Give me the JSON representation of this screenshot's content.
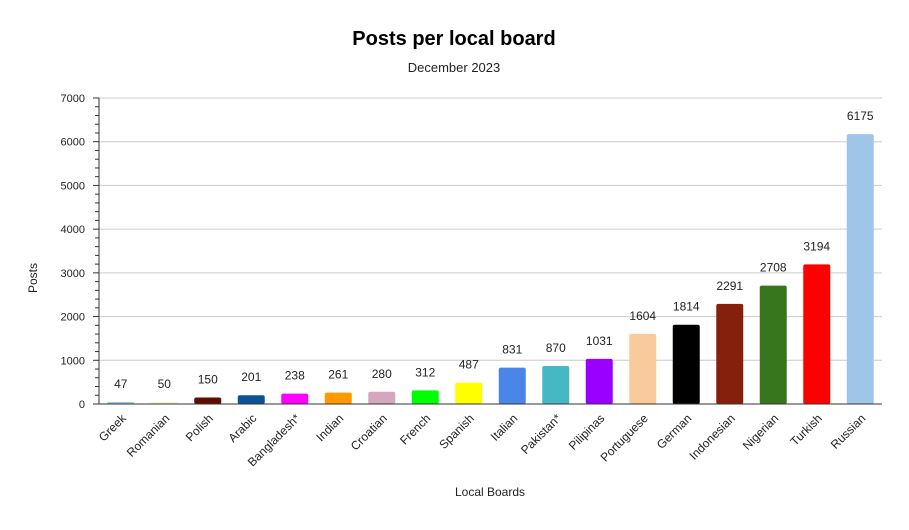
{
  "chart_data": {
    "type": "bar",
    "title": "Posts per local board",
    "subtitle": "December 2023",
    "xlabel": "Local Boards",
    "ylabel": "Posts",
    "ylim": [
      0,
      7000
    ],
    "yticks": [
      0,
      1000,
      2000,
      3000,
      4000,
      5000,
      6000,
      7000
    ],
    "grid": true,
    "legend": "none",
    "categories": [
      "Greek",
      "Romanian",
      "Polish",
      "Arabic",
      "Bangladesh*",
      "Indian",
      "Croatian",
      "French",
      "Spanish",
      "Italian",
      "Pakistan*",
      "Pilipinas",
      "Portuguese",
      "German",
      "Indonesian",
      "Nigerian",
      "Turkish",
      "Russian"
    ],
    "values": [
      47,
      50,
      150,
      201,
      238,
      261,
      280,
      312,
      487,
      831,
      870,
      1031,
      1604,
      1814,
      2291,
      2708,
      3194,
      6175
    ],
    "colors": [
      "#9fc5e8",
      "#fff2cc",
      "#5b0f00",
      "#0b5394",
      "#ff00ff",
      "#ff9900",
      "#d5a6bd",
      "#00ff00",
      "#ffff00",
      "#4a86e8",
      "#45b8c4",
      "#9900ff",
      "#f9cb9c",
      "#000000",
      "#85200c",
      "#38761d",
      "#ff0000",
      "#9fc5e8"
    ]
  }
}
